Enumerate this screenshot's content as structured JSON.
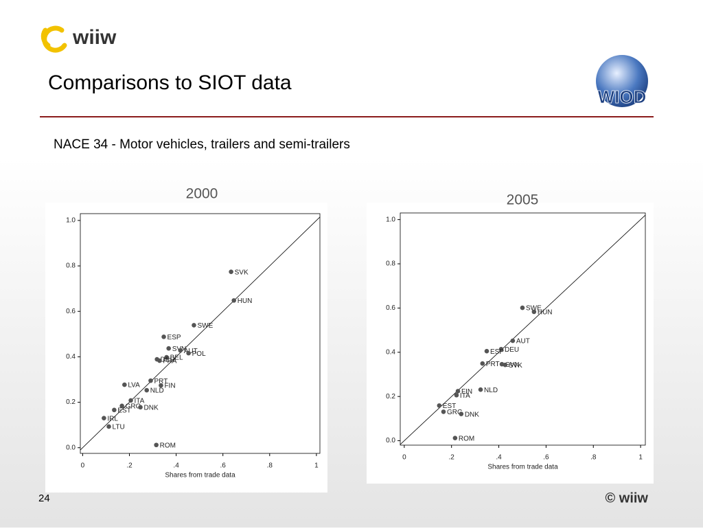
{
  "slide": {
    "logo": "wiiw",
    "title": "Comparisons to SIOT data",
    "subtitle": "NACE 34 - Motor vehicles, trailers and semi-trailers",
    "badge": "WIOD",
    "page": "24",
    "footer": "© wiiw"
  },
  "chart_data": [
    {
      "type": "scatter",
      "title": "2000",
      "xlabel": "Shares from trade data",
      "diagonal": true,
      "xlim": [
        -0.01,
        1.015
      ],
      "ylim": [
        -0.025,
        1.03
      ],
      "xticks": [
        0,
        {
          "value": 0.2,
          "label": ".2"
        },
        {
          "value": 0.4,
          "label": ".4"
        },
        {
          "value": 0.6,
          "label": ".6"
        },
        {
          "value": 0.8,
          "label": ".8"
        },
        1
      ],
      "yticks": [
        {
          "value": 0,
          "label": "0.0"
        },
        0.2,
        0.4,
        0.6,
        0.8,
        {
          "value": 1,
          "label": "1.0"
        }
      ],
      "series": [
        {
          "color": "#555555",
          "labels": [
            "SVK",
            "HUN",
            "SWE",
            "ESP",
            "SVN",
            "AUT",
            "POL",
            "BEL",
            "DEU",
            "FRA",
            "PRT",
            "FIN",
            "LVA",
            "NLD",
            "ITA",
            "GRC",
            "DNK",
            "EST",
            "IRL",
            "LTU",
            "ROM"
          ],
          "x": [
            0.635,
            0.647,
            0.476,
            0.347,
            0.368,
            0.418,
            0.453,
            0.359,
            0.318,
            0.329,
            0.291,
            0.335,
            0.179,
            0.274,
            0.206,
            0.168,
            0.247,
            0.135,
            0.091,
            0.112,
            0.315
          ],
          "values": [
            0.774,
            0.648,
            0.539,
            0.488,
            0.437,
            0.428,
            0.416,
            0.398,
            0.389,
            0.383,
            0.295,
            0.274,
            0.277,
            0.253,
            0.208,
            0.184,
            0.178,
            0.166,
            0.13,
            0.093,
            0.012
          ]
        }
      ]
    },
    {
      "type": "scatter",
      "title": "2005",
      "xlabel": "Shares from trade data",
      "diagonal": true,
      "xlim": [
        -0.017,
        1.02
      ],
      "ylim": [
        -0.02,
        1.03
      ],
      "xticks": [
        0,
        {
          "value": 0.2,
          "label": ".2"
        },
        {
          "value": 0.4,
          "label": ".4"
        },
        {
          "value": 0.6,
          "label": ".6"
        },
        {
          "value": 0.8,
          "label": ".8"
        },
        1
      ],
      "yticks": [
        {
          "value": 0,
          "label": "0.0"
        },
        0.2,
        0.4,
        0.6,
        0.8,
        {
          "value": 1,
          "label": "1.0"
        }
      ],
      "series": [
        {
          "color": "#555555",
          "labels": [
            "SWE",
            "HUN",
            "AUT",
            "DEU",
            "ESP",
            "PRT",
            "SVN",
            "SVK",
            "NLD",
            "FIN",
            "ITA",
            "EST",
            "GRC",
            "DNK",
            "ROM"
          ],
          "x": [
            0.5,
            0.549,
            0.459,
            0.41,
            0.349,
            0.331,
            0.413,
            0.427,
            0.323,
            0.227,
            0.221,
            0.148,
            0.166,
            0.241,
            0.215
          ],
          "values": [
            0.601,
            0.583,
            0.452,
            0.414,
            0.405,
            0.349,
            0.346,
            0.343,
            0.231,
            0.224,
            0.206,
            0.159,
            0.131,
            0.121,
            0.012
          ]
        }
      ]
    }
  ]
}
